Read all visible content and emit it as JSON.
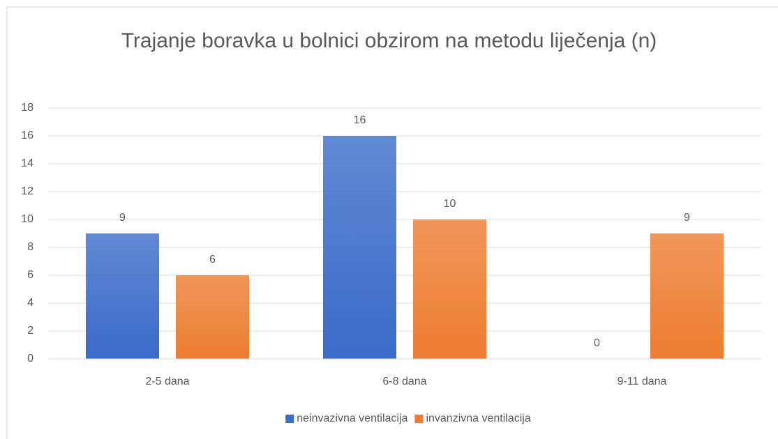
{
  "chart_data": {
    "type": "bar",
    "title": "Trajanje boravka u bolnici obzirom na metodu liječenja (n)",
    "categories": [
      "2-5 dana",
      "6-8 dana",
      "9-11 dana"
    ],
    "series": [
      {
        "name": "neinvazivna ventilacija",
        "color": "#3a6bc9",
        "values": [
          9,
          16,
          0
        ]
      },
      {
        "name": "invanzivna ventilacija",
        "color": "#ed7d31",
        "values": [
          6,
          10,
          9
        ]
      }
    ],
    "ylim": [
      0,
      18
    ],
    "yticks": [
      0,
      2,
      4,
      6,
      8,
      10,
      12,
      14,
      16,
      18
    ],
    "grid": true,
    "legend": "bottom"
  }
}
